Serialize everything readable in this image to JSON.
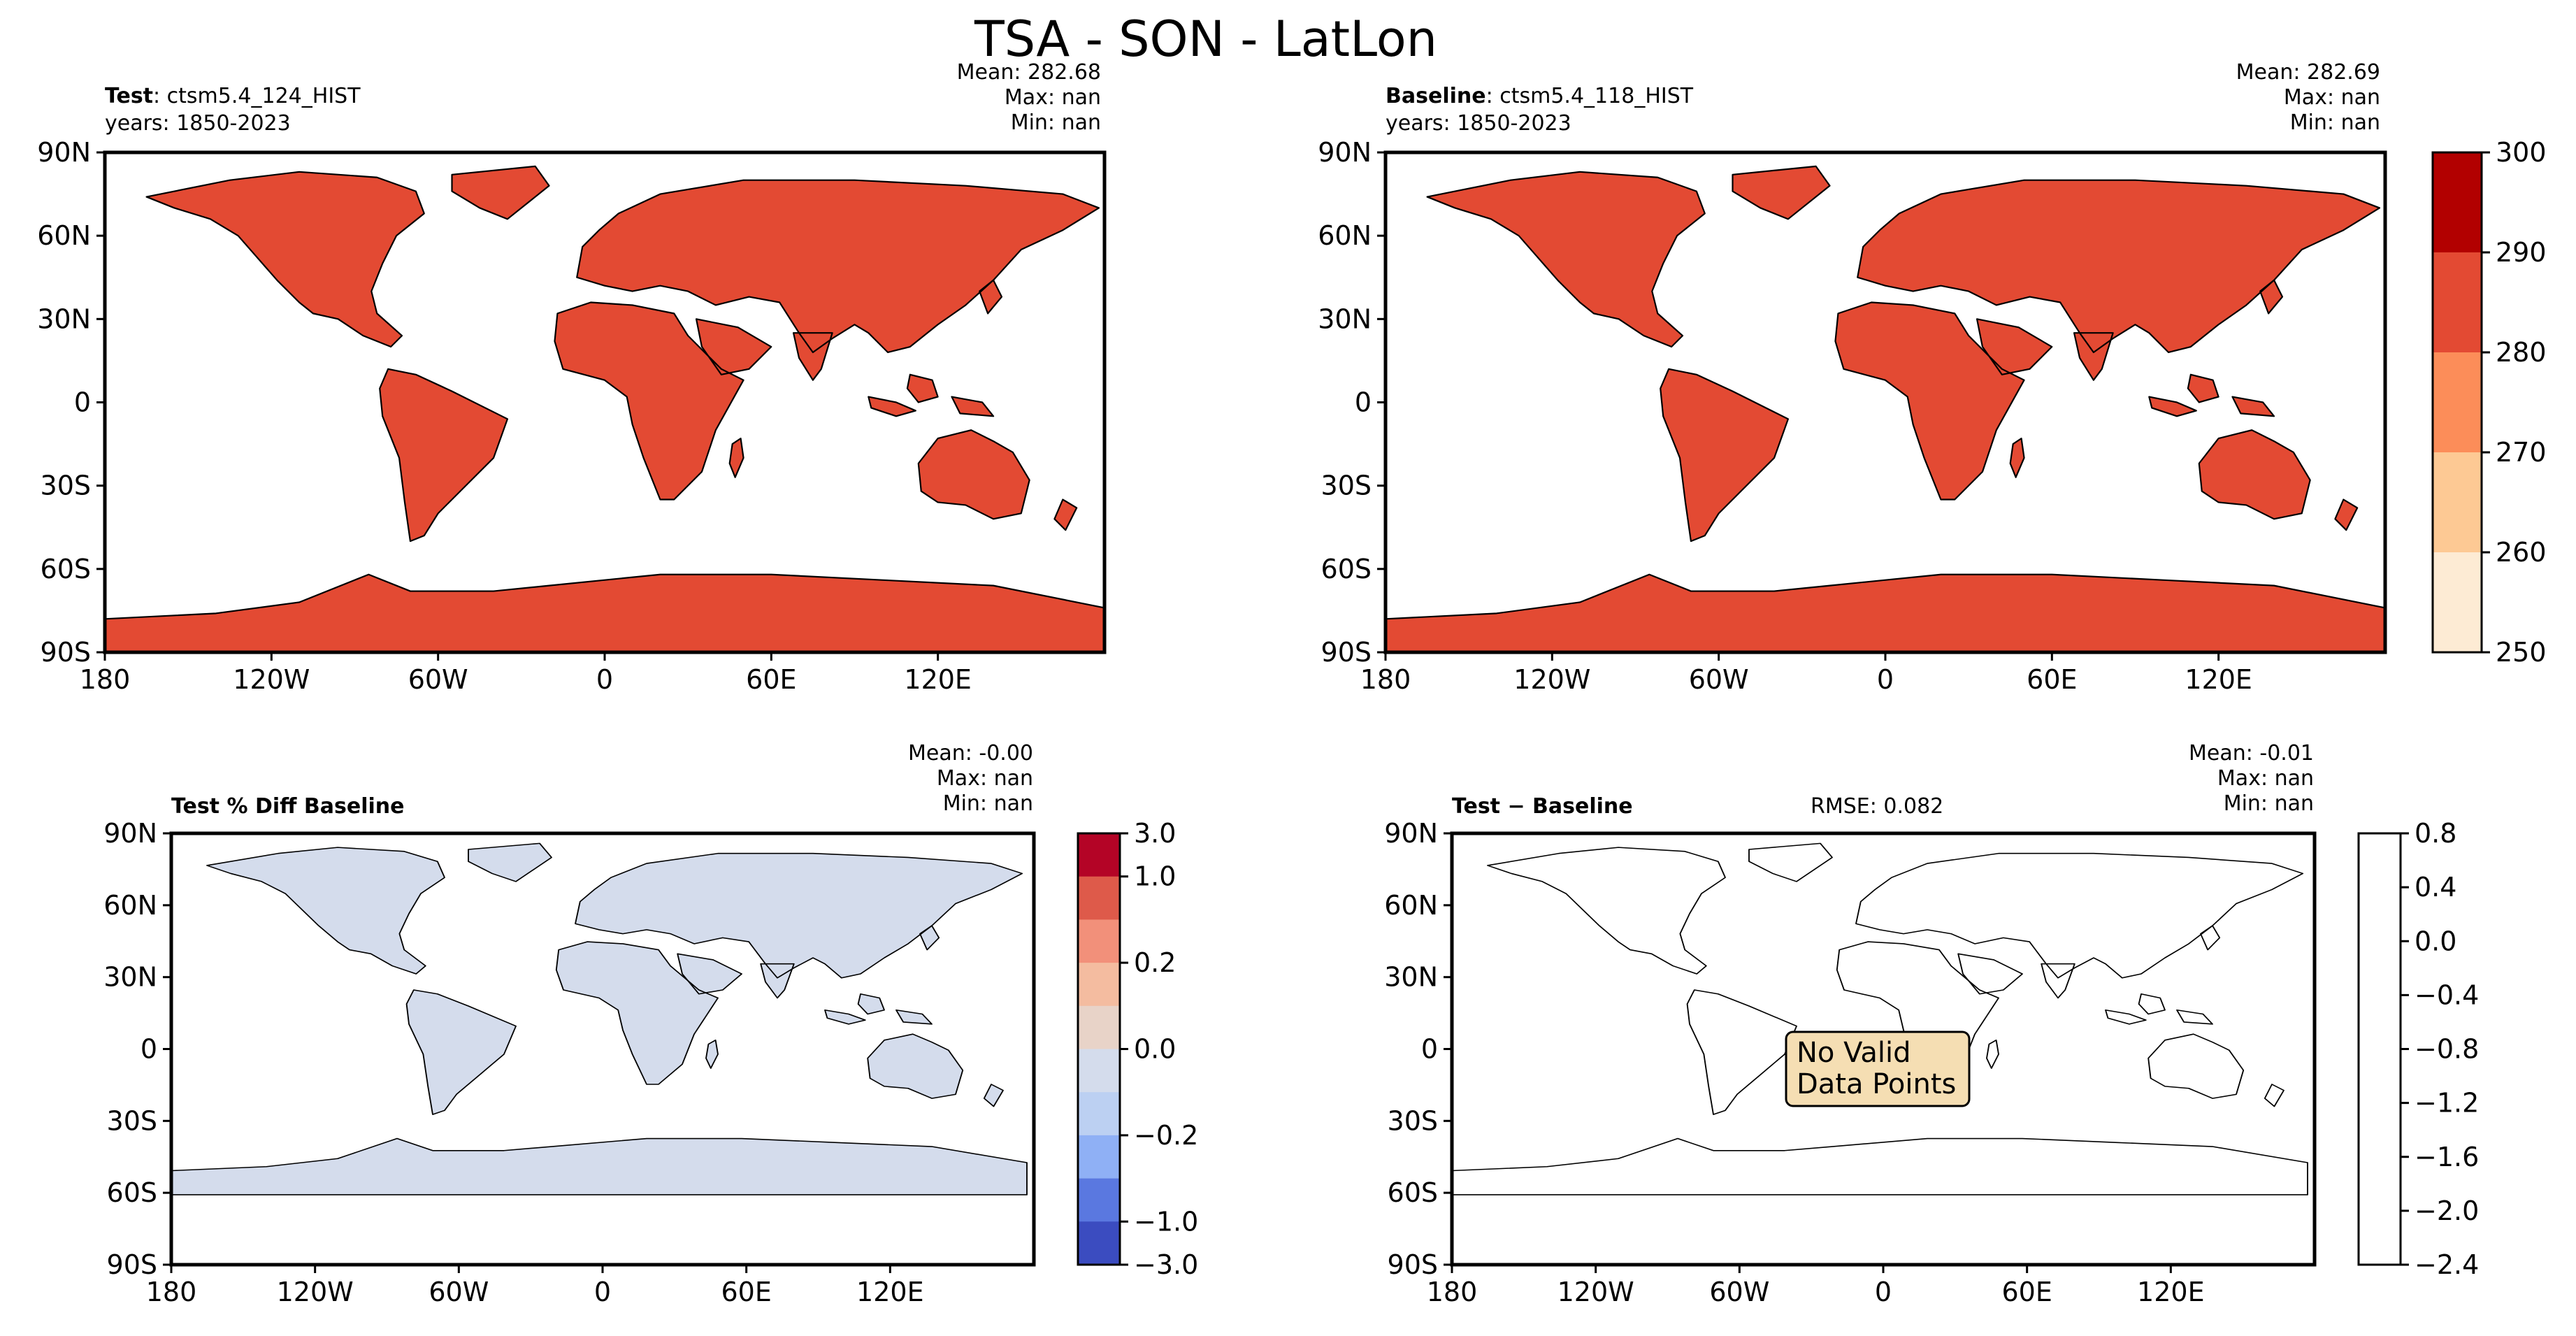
{
  "figure": {
    "title": "TSA - SON - LatLon"
  },
  "colors": {
    "seq": [
      "#fdebd4",
      "#fdc994",
      "#fc8d59",
      "#e34a33",
      "#b20000"
    ],
    "div": [
      "#3b4cc0",
      "#5a78e0",
      "#8fb0f5",
      "#bcd0f2",
      "#d4dcec",
      "#e8d3c8",
      "#f4bca0",
      "#f2907a",
      "#de5a4a",
      "#b40426"
    ],
    "nodata_box": "#f5deb3"
  },
  "axes_ticks": {
    "lon": [
      "180",
      "120W",
      "60W",
      "0",
      "60E",
      "120E"
    ],
    "lat": [
      "90N",
      "60N",
      "30N",
      "0",
      "30S",
      "60S",
      "90S"
    ]
  },
  "panels": {
    "test": {
      "label": "Test",
      "case": ": ctsm5.4_124_HIST",
      "years": "years: 1850-2023",
      "stats": [
        "Mean: 282.68",
        "Max:   nan",
        "Min:   nan"
      ]
    },
    "baseline": {
      "label": "Baseline",
      "case": ": ctsm5.4_118_HIST",
      "years": "years: 1850-2023",
      "stats": [
        "Mean: 282.69",
        "Max:   nan",
        "Min:   nan"
      ]
    },
    "pctdiff": {
      "label": "Test % Diff Baseline",
      "stats": [
        "Mean: -0.00",
        "Max:   nan",
        "Min:   nan"
      ]
    },
    "diff": {
      "label": "Test − Baseline",
      "rmse": "RMSE: 0.082",
      "stats": [
        "Mean: -0.01",
        "Max:   nan",
        "Min:   nan"
      ],
      "nodata": [
        "No Valid",
        "Data Points"
      ]
    }
  },
  "chart_data": [
    {
      "type": "heatmap",
      "title": "Test: ctsm5.4_124_HIST",
      "projection": "PlateCarree",
      "xlim": [
        -180,
        180
      ],
      "ylim": [
        -90,
        90
      ],
      "mean": 282.68,
      "max": "nan",
      "min": "nan",
      "levels": [
        250,
        260,
        270,
        280,
        290,
        300
      ]
    },
    {
      "type": "heatmap",
      "title": "Baseline: ctsm5.4_118_HIST",
      "projection": "PlateCarree",
      "xlim": [
        -180,
        180
      ],
      "ylim": [
        -90,
        90
      ],
      "mean": 282.69,
      "max": "nan",
      "min": "nan",
      "colorbar": {
        "ticks": [
          "250",
          "260",
          "270",
          "280",
          "290",
          "300"
        ]
      }
    },
    {
      "type": "heatmap",
      "title": "Test % Diff Baseline",
      "xlim": [
        -180,
        180
      ],
      "ylim": [
        -90,
        90
      ],
      "mean": -0.0,
      "max": "nan",
      "min": "nan",
      "colorbar": {
        "ticks": [
          "3.0",
          "1.0",
          "0.2",
          "0.0",
          "−0.2",
          "−1.0",
          "−3.0"
        ]
      }
    },
    {
      "type": "heatmap",
      "title": "Test − Baseline",
      "xlim": [
        -180,
        180
      ],
      "ylim": [
        -90,
        90
      ],
      "mean": -0.01,
      "max": "nan",
      "min": "nan",
      "rmse": 0.082,
      "colorbar": {
        "ticks": [
          "0.8",
          "0.4",
          "0.0",
          "−0.4",
          "−0.8",
          "−1.2",
          "−1.6",
          "−2.0",
          "−2.4"
        ]
      }
    }
  ]
}
